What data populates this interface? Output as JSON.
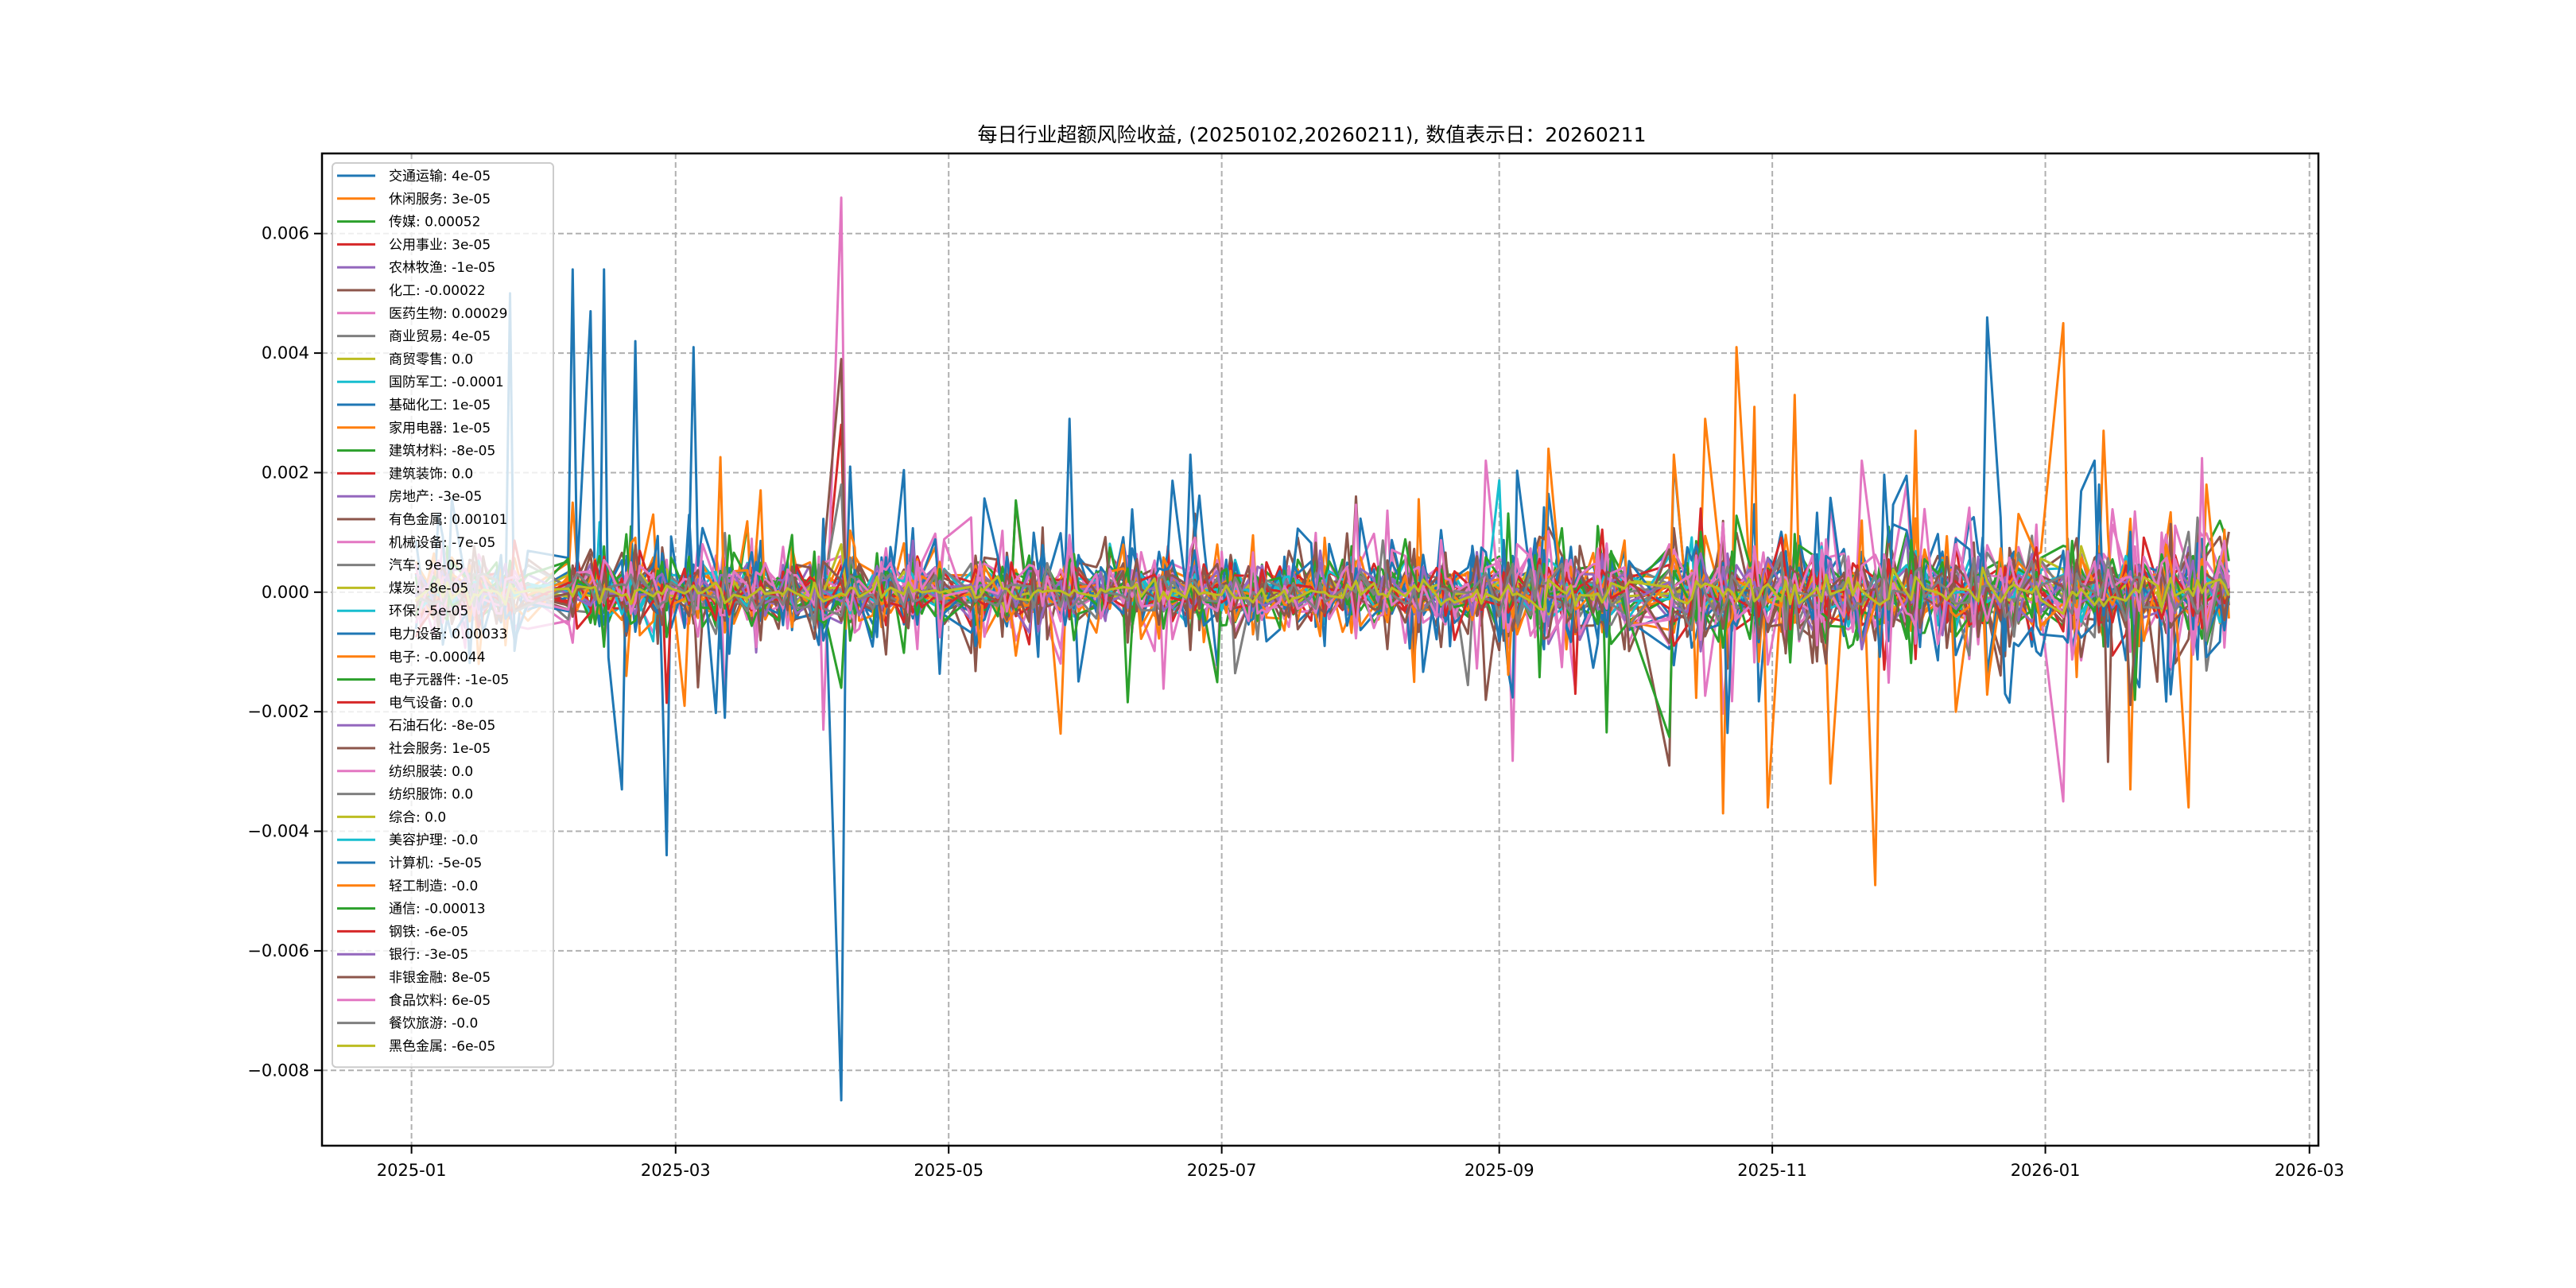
{
  "chart_data": {
    "type": "line",
    "title": "每日行业超额风险收益, (20250102,20260211),  数值表示日：20260211",
    "xlabel": "",
    "ylabel": "",
    "x_range": [
      "2025-01-02",
      "2026-02-11"
    ],
    "xlim": [
      "2024-12-12",
      "2026-03-03"
    ],
    "ylim": [
      -0.00926,
      0.00734
    ],
    "grid": true,
    "legend_position": "upper-left",
    "x_ticks": [
      {
        "date": "2025-01-01",
        "label": "2025-01"
      },
      {
        "date": "2025-03-01",
        "label": "2025-03"
      },
      {
        "date": "2025-05-01",
        "label": "2025-05"
      },
      {
        "date": "2025-07-01",
        "label": "2025-07"
      },
      {
        "date": "2025-09-01",
        "label": "2025-09"
      },
      {
        "date": "2025-11-01",
        "label": "2025-11"
      },
      {
        "date": "2026-01-01",
        "label": "2026-01"
      },
      {
        "date": "2026-03-01",
        "label": "2026-03"
      }
    ],
    "y_ticks": [
      {
        "value": 0.006,
        "label": "0.006"
      },
      {
        "value": 0.004,
        "label": "0.004"
      },
      {
        "value": 0.002,
        "label": "0.002"
      },
      {
        "value": 0.0,
        "label": "0.000"
      },
      {
        "value": -0.002,
        "label": "−0.002"
      },
      {
        "value": -0.004,
        "label": "−0.004"
      },
      {
        "value": -0.006,
        "label": "−0.006"
      },
      {
        "value": -0.008,
        "label": "−0.008"
      }
    ],
    "series": [
      {
        "name": "交通运输",
        "label": "交通运输: 4e-05",
        "color": "#1f77b4",
        "final": 4e-05,
        "volatility": 0.00025,
        "spikes": []
      },
      {
        "name": "休闲服务",
        "label": "休闲服务: 3e-05",
        "color": "#ff7f0e",
        "final": 3e-05,
        "volatility": 0.0003,
        "spikes": [
          [
            "2025-02-06",
            0.0015
          ],
          [
            "2025-02-18",
            -0.0014
          ]
        ]
      },
      {
        "name": "传媒",
        "label": "传媒: 0.00052",
        "color": "#2ca02c",
        "final": 0.00052,
        "volatility": 0.0003,
        "spikes": [
          [
            "2025-02-19",
            0.0011
          ]
        ]
      },
      {
        "name": "公用事业",
        "label": "公用事业: 3e-05",
        "color": "#d62728",
        "final": 3e-05,
        "volatility": 0.00025,
        "spikes": [
          [
            "2025-04-07",
            0.0028
          ]
        ]
      },
      {
        "name": "农林牧渔",
        "label": "农林牧渔: -1e-05",
        "color": "#9467bd",
        "final": -1e-05,
        "volatility": 0.0002,
        "spikes": []
      },
      {
        "name": "化工",
        "label": "化工: -0.00022",
        "color": "#8c564b",
        "final": -0.00022,
        "volatility": 0.00025,
        "spikes": []
      },
      {
        "name": "医药生物",
        "label": "医药生物: 0.00029",
        "color": "#e377c2",
        "final": 0.00029,
        "volatility": 0.0005,
        "spikes": [
          [
            "2025-04-03",
            -0.0023
          ],
          [
            "2025-04-07",
            0.0066
          ],
          [
            "2025-08-29",
            0.0022
          ],
          [
            "2025-11-21",
            0.0022
          ],
          [
            "2026-01-05",
            -0.0035
          ]
        ]
      },
      {
        "name": "商业贸易",
        "label": "商业贸易: 4e-05",
        "color": "#7f7f7f",
        "final": 4e-05,
        "volatility": 0.0002,
        "spikes": [
          [
            "2025-04-07",
            0.0018
          ]
        ]
      },
      {
        "name": "商贸零售",
        "label": "商贸零售: 0.0",
        "color": "#bcbd22",
        "final": 0.0,
        "volatility": 8e-05,
        "spikes": []
      },
      {
        "name": "国防军工",
        "label": "国防军工: -0.0001",
        "color": "#17becf",
        "final": -0.0001,
        "volatility": 0.00025,
        "spikes": []
      },
      {
        "name": "基础化工",
        "label": "基础化工: 1e-05",
        "color": "#1f77b4",
        "final": 1e-05,
        "volatility": 0.0002,
        "spikes": []
      },
      {
        "name": "家用电器",
        "label": "家用电器: 1e-05",
        "color": "#ff7f0e",
        "final": 1e-05,
        "volatility": 0.0002,
        "spikes": [
          [
            "2025-02-24",
            0.0013
          ],
          [
            "2025-03-03",
            -0.0019
          ]
        ]
      },
      {
        "name": "建筑材料",
        "label": "建筑材料: -8e-05",
        "color": "#2ca02c",
        "final": -8e-05,
        "volatility": 0.0002,
        "spikes": []
      },
      {
        "name": "建筑装饰",
        "label": "建筑装饰: 0.0",
        "color": "#d62728",
        "final": 0.0,
        "volatility": 0.0002,
        "spikes": []
      },
      {
        "name": "房地产",
        "label": "房地产: -3e-05",
        "color": "#9467bd",
        "final": -3e-05,
        "volatility": 0.0002,
        "spikes": []
      },
      {
        "name": "有色金属",
        "label": "有色金属: 0.00101",
        "color": "#8c564b",
        "final": 0.00101,
        "volatility": 0.0004,
        "spikes": [
          [
            "2025-04-07",
            0.0039
          ],
          [
            "2025-07-31",
            0.0016
          ],
          [
            "2025-10-09",
            -0.0029
          ]
        ]
      },
      {
        "name": "机械设备",
        "label": "机械设备: -7e-05",
        "color": "#e377c2",
        "final": -7e-05,
        "volatility": 0.0003,
        "spikes": [
          [
            "2025-03-12",
            -0.0018
          ]
        ]
      },
      {
        "name": "汽车",
        "label": "汽车: 9e-05",
        "color": "#7f7f7f",
        "final": 9e-05,
        "volatility": 0.0002,
        "spikes": []
      },
      {
        "name": "煤炭",
        "label": "煤炭: -8e-05",
        "color": "#bcbd22",
        "final": -8e-05,
        "volatility": 0.0001,
        "spikes": []
      },
      {
        "name": "环保",
        "label": "环保: -5e-05",
        "color": "#17becf",
        "final": -5e-05,
        "volatility": 0.00015,
        "spikes": []
      },
      {
        "name": "电力设备",
        "label": "电力设备: 0.00033",
        "color": "#1f77b4",
        "final": 0.00033,
        "volatility": 0.0006,
        "spikes": [
          [
            "2025-01-23",
            0.005
          ],
          [
            "2025-02-06",
            0.0054
          ],
          [
            "2025-02-10",
            0.0047
          ],
          [
            "2025-02-13",
            0.0054
          ],
          [
            "2025-02-17",
            -0.0033
          ],
          [
            "2025-02-20",
            0.0042
          ],
          [
            "2025-02-27",
            -0.0044
          ],
          [
            "2025-03-05",
            0.0041
          ],
          [
            "2025-03-12",
            -0.0021
          ],
          [
            "2025-04-07",
            -0.0085
          ],
          [
            "2025-04-09",
            0.0021
          ],
          [
            "2025-05-28",
            0.0029
          ],
          [
            "2025-06-24",
            0.0023
          ],
          [
            "2025-10-10",
            0.0022
          ],
          [
            "2026-01-12",
            0.0022
          ]
        ]
      },
      {
        "name": "电子",
        "label": "电子: -0.00044",
        "color": "#ff7f0e",
        "final": -0.00044,
        "volatility": 0.0004,
        "spikes": [
          [
            "2025-09-12",
            0.0024
          ],
          [
            "2025-10-10",
            0.0023
          ],
          [
            "2025-10-17",
            0.0029
          ],
          [
            "2025-10-21",
            -0.0037
          ],
          [
            "2025-10-24",
            0.0041
          ],
          [
            "2025-10-28",
            0.0031
          ],
          [
            "2025-10-31",
            -0.0036
          ],
          [
            "2025-11-06",
            0.0033
          ],
          [
            "2025-11-14",
            -0.0032
          ],
          [
            "2025-11-24",
            -0.0049
          ],
          [
            "2025-12-03",
            0.0027
          ],
          [
            "2025-12-12",
            -0.002
          ],
          [
            "2026-01-05",
            0.0045
          ],
          [
            "2026-01-14",
            0.0027
          ],
          [
            "2026-01-20",
            -0.0033
          ],
          [
            "2026-02-02",
            -0.0036
          ],
          [
            "2026-02-06",
            0.0018
          ]
        ]
      },
      {
        "name": "电子元器件",
        "label": "电子元器件: -1e-05",
        "color": "#2ca02c",
        "final": -1e-05,
        "volatility": 0.0003,
        "spikes": [
          [
            "2025-04-07",
            -0.0016
          ]
        ]
      },
      {
        "name": "电气设备",
        "label": "电气设备: 0.0",
        "color": "#d62728",
        "final": 0.0,
        "volatility": 0.0002,
        "spikes": [
          [
            "2025-09-18",
            -0.0017
          ],
          [
            "2025-10-16",
            0.0014
          ]
        ]
      },
      {
        "name": "石油石化",
        "label": "石油石化: -8e-05",
        "color": "#9467bd",
        "final": -8e-05,
        "volatility": 0.0002,
        "spikes": []
      },
      {
        "name": "社会服务",
        "label": "社会服务: 1e-05",
        "color": "#8c564b",
        "final": 1e-05,
        "volatility": 0.0003,
        "spikes": [
          [
            "2025-08-29",
            -0.0018
          ]
        ]
      },
      {
        "name": "纺织服装",
        "label": "纺织服装: 0.0",
        "color": "#e377c2",
        "final": 0.0,
        "volatility": 0.0003,
        "spikes": []
      },
      {
        "name": "纺织服饰",
        "label": "纺织服饰: 0.0",
        "color": "#7f7f7f",
        "final": 0.0,
        "volatility": 0.00015,
        "spikes": []
      },
      {
        "name": "综合",
        "label": "综合: 0.0",
        "color": "#bcbd22",
        "final": 0.0,
        "volatility": 0.0001,
        "spikes": [
          [
            "2025-04-07",
            0.0008
          ]
        ]
      },
      {
        "name": "美容护理",
        "label": "美容护理: -0.0",
        "color": "#17becf",
        "final": 0.0,
        "volatility": 0.00015,
        "spikes": []
      },
      {
        "name": "计算机",
        "label": "计算机: -5e-05",
        "color": "#1f77b4",
        "final": -5e-05,
        "volatility": 0.0004,
        "spikes": [
          [
            "2025-12-23",
            -0.0017
          ],
          [
            "2026-01-13",
            0.0018
          ]
        ]
      },
      {
        "name": "轻工制造",
        "label": "轻工制造: -0.0",
        "color": "#ff7f0e",
        "final": 0.0,
        "volatility": 0.0002,
        "spikes": []
      },
      {
        "name": "通信",
        "label": "通信: -0.00013",
        "color": "#2ca02c",
        "final": -0.00013,
        "volatility": 0.0003,
        "spikes": [
          [
            "2026-01-21",
            -0.0018
          ]
        ]
      },
      {
        "name": "钢铁",
        "label": "钢铁: -6e-05",
        "color": "#d62728",
        "final": -6e-05,
        "volatility": 0.0002,
        "spikes": []
      },
      {
        "name": "银行",
        "label": "银行: -3e-05",
        "color": "#9467bd",
        "final": -3e-05,
        "volatility": 0.0002,
        "spikes": []
      },
      {
        "name": "非银金融",
        "label": "非银金融: 8e-05",
        "color": "#8c564b",
        "final": 8e-05,
        "volatility": 0.0003,
        "spikes": []
      },
      {
        "name": "食品饮料",
        "label": "食品饮料: 6e-05",
        "color": "#e377c2",
        "final": 6e-05,
        "volatility": 0.0003,
        "spikes": []
      },
      {
        "name": "餐饮旅游",
        "label": "餐饮旅游: -0.0",
        "color": "#7f7f7f",
        "final": 0.0,
        "volatility": 0.0002,
        "spikes": []
      },
      {
        "name": "黑色金属",
        "label": "黑色金属: -6e-05",
        "color": "#bcbd22",
        "final": -6e-05,
        "volatility": 0.0001,
        "spikes": []
      }
    ]
  }
}
